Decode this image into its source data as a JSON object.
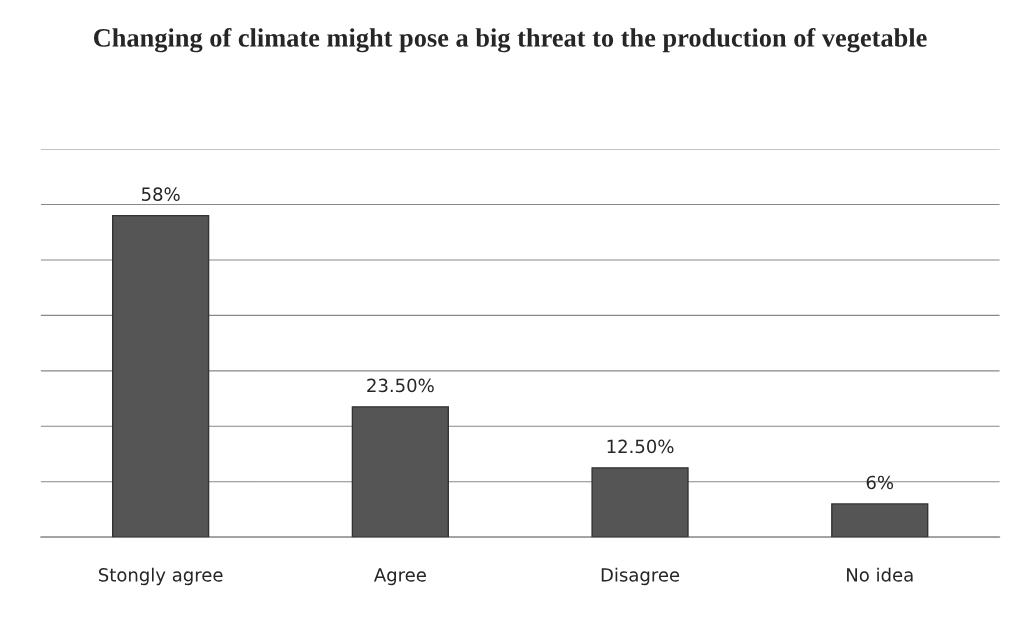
{
  "chart_data": {
    "type": "bar",
    "title": "Changing of climate might pose a big threat to the production of vegetable",
    "categories": [
      "Stongly agree",
      "Agree",
      "Disagree",
      "No idea"
    ],
    "values": [
      58,
      23.5,
      12.5,
      6
    ],
    "value_labels": [
      "58%",
      "23.50%",
      "12.50%",
      "6%"
    ],
    "color": "#555555",
    "ylim": [
      0,
      70
    ],
    "yticks": [
      {
        "value": 0,
        "label": null
      },
      {
        "value": 10,
        "label": null
      },
      {
        "value": 20,
        "label": null
      },
      {
        "value": 30,
        "label": null
      },
      {
        "value": 40,
        "label": null
      },
      {
        "value": 50,
        "label": null
      },
      {
        "value": 60,
        "label": null
      },
      {
        "value": 70,
        "label": null
      }
    ],
    "grid": "y",
    "tick_labels": "x"
  }
}
